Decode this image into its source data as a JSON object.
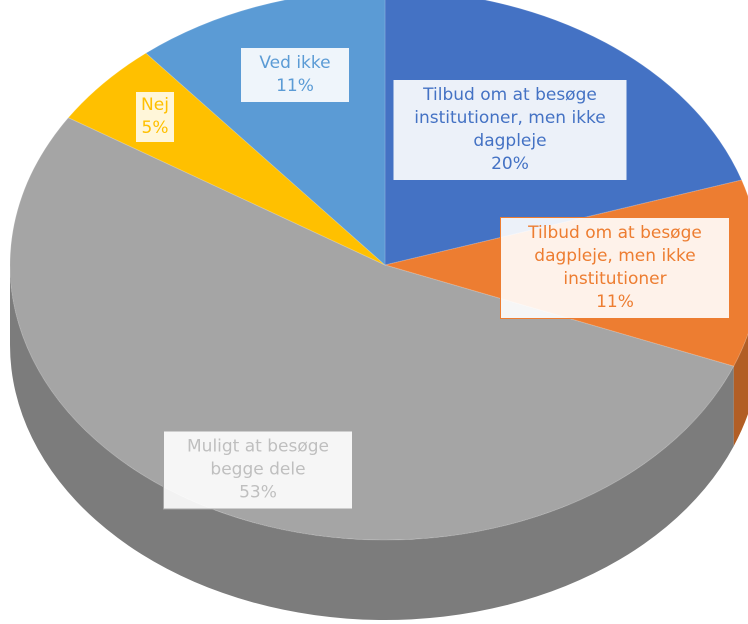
{
  "chart_data": {
    "type": "pie",
    "categories": [
      "Tilbud om at besøge institutioner, men ikke dagpleje",
      "Tilbud om at besøge dagpleje, men ikke institutioner",
      "Muligt at besøge begge dele",
      "Nej",
      "Ved ikke"
    ],
    "values": [
      20,
      11,
      53,
      5,
      11
    ],
    "value_labels": [
      "20%",
      "11%",
      "53%",
      "5%",
      "11%"
    ],
    "colors": [
      "#4472c4",
      "#ed7d31",
      "#a5a5a5",
      "#ffc000",
      "#5b9bd5"
    ]
  }
}
